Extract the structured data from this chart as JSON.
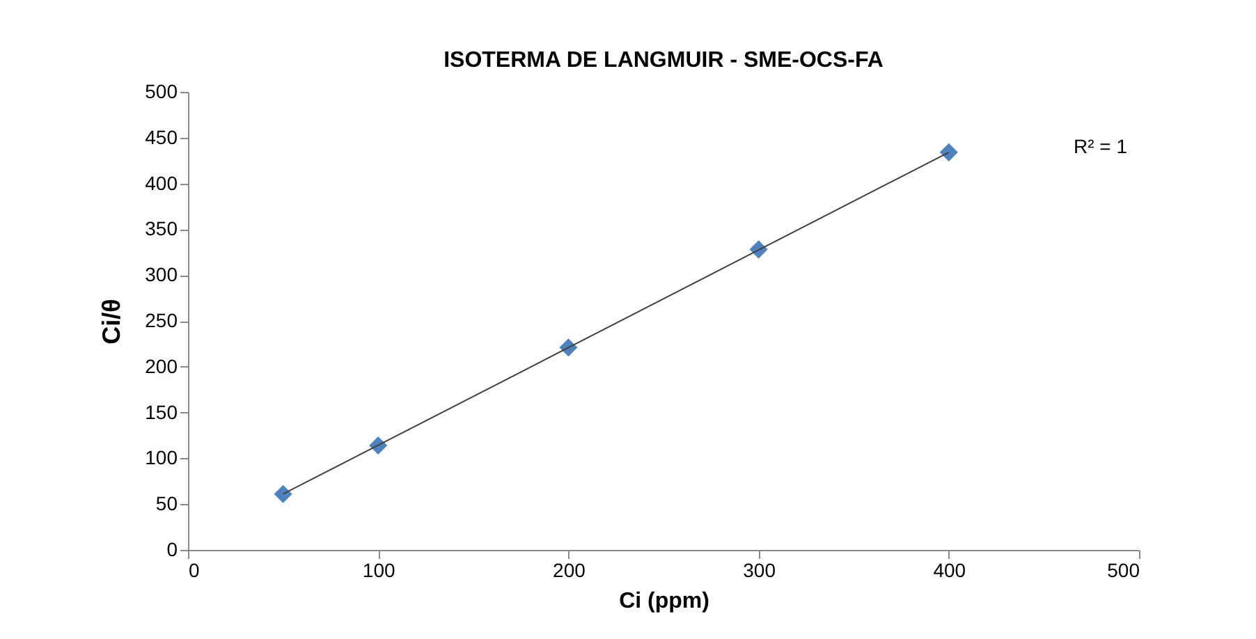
{
  "chart_data": {
    "type": "scatter",
    "title": "ISOTERMA DE LANGMUIR - SME-OCS-FA",
    "xlabel": "Ci (ppm)",
    "ylabel": "Ci/θ",
    "x": [
      50,
      100,
      200,
      300,
      400
    ],
    "series": [
      {
        "color": "#4f81bd",
        "marker": "diamond",
        "values": [
          61,
          114,
          221,
          328,
          434
        ]
      },
      {
        "type": "line",
        "color": "#404040",
        "x": [
          50,
          400
        ],
        "values": [
          61,
          434
        ],
        "marker": "none",
        "line_style": "solid"
      }
    ],
    "xlim": [
      0,
      500
    ],
    "xticks": [
      0,
      100,
      200,
      300,
      400,
      500
    ],
    "ylim": [
      0,
      500
    ],
    "yticks": [
      0,
      50,
      100,
      150,
      200,
      250,
      300,
      350,
      400,
      450,
      500
    ],
    "grid": false,
    "annotations": [
      "R² = 1"
    ]
  }
}
